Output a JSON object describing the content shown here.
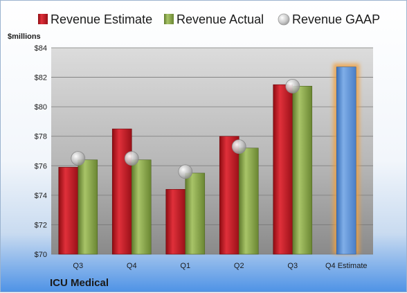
{
  "company": "ICU Medical",
  "chart_data": {
    "type": "bar",
    "unit_label": "$millions",
    "categories": [
      "Q3",
      "Q4",
      "Q1",
      "Q2",
      "Q3",
      "Q4 Estimate"
    ],
    "ylim": [
      70,
      84
    ],
    "yticks": [
      70,
      72,
      74,
      76,
      78,
      80,
      82,
      84
    ],
    "ytick_labels": [
      "$70",
      "$72",
      "$74",
      "$76",
      "$78",
      "$80",
      "$82",
      "$84"
    ],
    "grid": true,
    "legend_position": "top",
    "series": [
      {
        "name": "Revenue Estimate",
        "kind": "bar",
        "color": "#c0161e",
        "values": [
          75.9,
          78.5,
          74.4,
          78.0,
          81.5,
          null
        ]
      },
      {
        "name": "Revenue Actual",
        "kind": "bar",
        "color": "#8aa84a",
        "values": [
          76.4,
          76.4,
          75.5,
          77.2,
          81.4,
          null
        ]
      },
      {
        "name": "Revenue GAAP",
        "kind": "marker",
        "color": "#c8c8c8",
        "values": [
          76.5,
          76.5,
          75.6,
          77.3,
          81.4,
          null
        ]
      },
      {
        "name": "Q4 Estimate",
        "kind": "bar",
        "color": "#5b8fd6",
        "highlight": "#f0a040",
        "values": [
          null,
          null,
          null,
          null,
          null,
          82.7
        ]
      }
    ]
  }
}
